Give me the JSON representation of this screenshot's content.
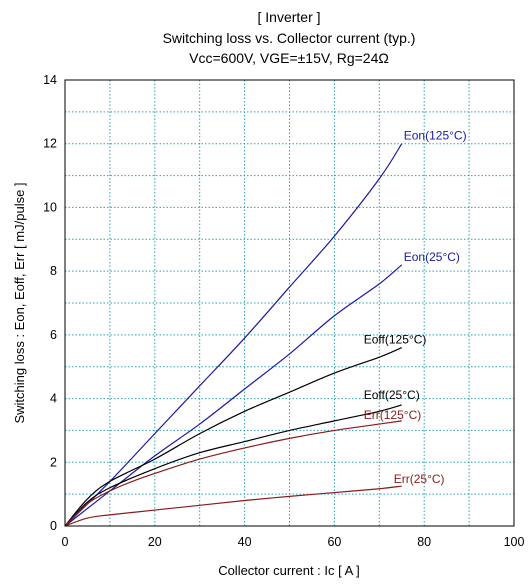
{
  "chart_data": {
    "type": "line",
    "title": [
      "[ Inverter ]",
      "Switching loss  vs.  Collector current  (typ.)",
      "Vcc=600V, VGE=±15V, Rg=24Ω"
    ],
    "xlabel": "Collector current  :  Ic  [ A ]",
    "ylabel": "Switching loss  :  Eon, Eoff, Err  [ mJ/pulse ]",
    "xlim": [
      0,
      100
    ],
    "ylim": [
      0,
      14
    ],
    "xticks": [
      0,
      20,
      40,
      60,
      80,
      100
    ],
    "yticks": [
      0,
      2,
      4,
      6,
      8,
      10,
      12,
      14
    ],
    "grid": true,
    "series": [
      {
        "name": "Eon(125°C)",
        "color": "#1a1aa0",
        "x": [
          0,
          10,
          20,
          30,
          40,
          50,
          60,
          70,
          75
        ],
        "y": [
          0,
          1.4,
          2.9,
          4.4,
          5.9,
          7.5,
          9.1,
          10.9,
          12.0
        ]
      },
      {
        "name": "Eon(25°C)",
        "color": "#1a1aa0",
        "x": [
          0,
          10,
          20,
          30,
          40,
          50,
          60,
          70,
          75
        ],
        "y": [
          0,
          1.1,
          2.2,
          3.2,
          4.3,
          5.4,
          6.6,
          7.6,
          8.2
        ]
      },
      {
        "name": "Eoff(125°C)",
        "color": "#000000",
        "x": [
          0,
          5,
          10,
          20,
          30,
          40,
          50,
          60,
          70,
          75
        ],
        "y": [
          0,
          0.85,
          1.4,
          2.1,
          2.9,
          3.6,
          4.2,
          4.8,
          5.3,
          5.6
        ]
      },
      {
        "name": "Eoff(25°C)",
        "color": "#000000",
        "x": [
          0,
          5,
          10,
          20,
          30,
          40,
          50,
          60,
          70,
          75
        ],
        "y": [
          0,
          0.75,
          1.2,
          1.8,
          2.3,
          2.65,
          3.0,
          3.3,
          3.6,
          3.8
        ]
      },
      {
        "name": "Err(125°C)",
        "color": "#8b1a1a",
        "x": [
          0,
          5,
          10,
          15,
          20,
          30,
          40,
          50,
          60,
          70,
          75
        ],
        "y": [
          0,
          0.7,
          1.1,
          1.4,
          1.65,
          2.1,
          2.45,
          2.75,
          3.0,
          3.2,
          3.3
        ]
      },
      {
        "name": "Err(25°C)",
        "color": "#8b1a1a",
        "x": [
          0,
          5,
          10,
          20,
          30,
          40,
          50,
          60,
          70,
          75
        ],
        "y": [
          0,
          0.25,
          0.35,
          0.5,
          0.65,
          0.8,
          0.93,
          1.05,
          1.17,
          1.25
        ]
      }
    ]
  }
}
